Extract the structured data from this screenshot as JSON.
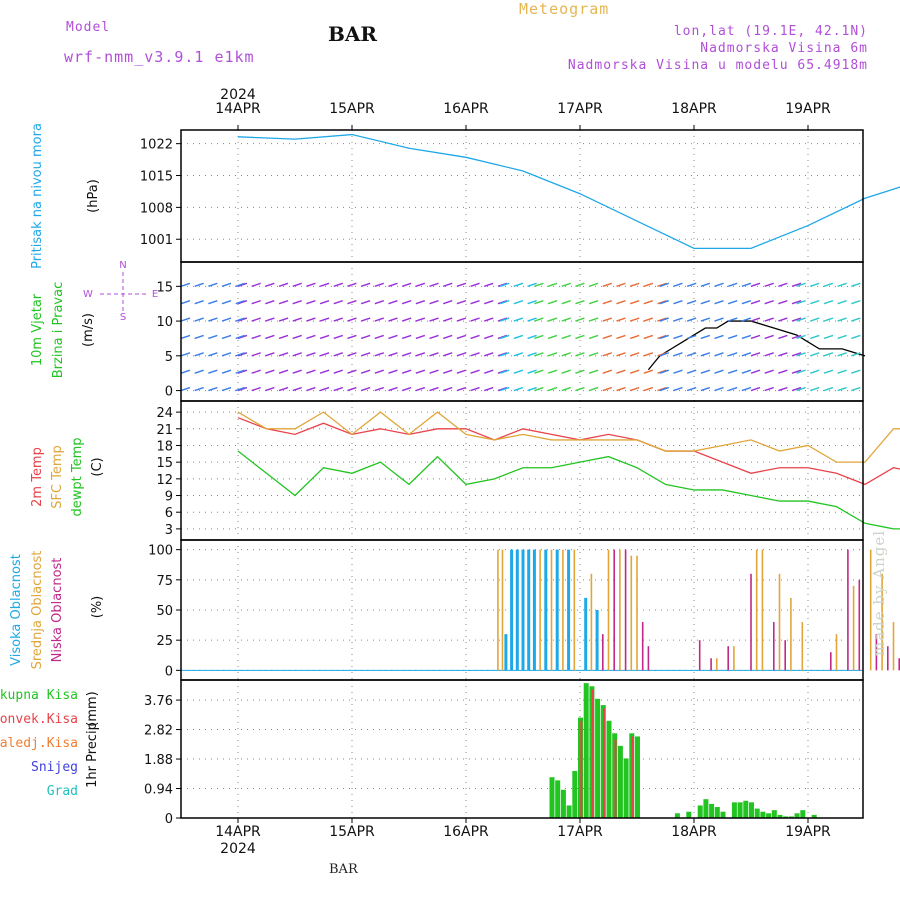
{
  "header": {
    "model_label": "Model",
    "model_name": "wrf-nmm_v3.9.1  e1km",
    "station": "BAR",
    "title": "Meteogram",
    "coords": "lon,lat (19.1E, 42.1N)",
    "elevation": "Nadmorska Visina 6m",
    "model_elevation": "Nadmorska Visina u modelu 65.4918m",
    "footer_station": "BAR",
    "credit": "made by Angel"
  },
  "colors": {
    "pressure": "#1ea8e8",
    "temp2m": "#e8434a",
    "sfc_temp": "#e0a63a",
    "dewpt": "#22c422",
    "cloud_high": "#1ea8e8",
    "cloud_mid": "#e0a63a",
    "cloud_low": "#c0288a",
    "precip_total": "#22c422",
    "precip_conv": "#e8434a",
    "precip_frozen": "#f07c30",
    "precip_snow": "#4040e0",
    "precip_grad": "#20c0c0",
    "wind_label": "#b14fd8"
  },
  "chart_data": [
    {
      "type": "line",
      "panel": "pressure",
      "x_dates": [
        "14APR",
        "15APR",
        "16APR",
        "17APR",
        "18APR",
        "19APR"
      ],
      "year": "2024",
      "ylabel": "Pritisak na nivou mora",
      "units": "(hPa)",
      "yticks": [
        1001,
        1008,
        1015,
        1022
      ],
      "ylim": [
        996,
        1025
      ],
      "series": [
        {
          "x": [
            0,
            0.5,
            1,
            1.5,
            2,
            2.5,
            3,
            3.5,
            4,
            4.5,
            5,
            5.5,
            6
          ],
          "values": [
            1023.5,
            1023,
            1024,
            1021,
            1019,
            1016,
            1011,
            1005,
            999,
            999,
            1004,
            1010,
            1014
          ]
        }
      ]
    },
    {
      "type": "line",
      "panel": "wind",
      "ylabel": [
        "10m Vjetar",
        "Brzina i Pravac"
      ],
      "units": "(m/s)",
      "direction_labels": {
        "n": "N",
        "s": "S",
        "w": "W",
        "e": "E"
      },
      "yticks": [
        0,
        5,
        10,
        15
      ],
      "ylim": [
        -1.5,
        18.5
      ],
      "series": [
        {
          "x": [
            3.6,
            3.65,
            3.7,
            3.8,
            3.9,
            4,
            4.1,
            4.2,
            4.3,
            4.5,
            4.7,
            4.9,
            5,
            5.1,
            5.3,
            5.5
          ],
          "values": [
            3,
            4,
            5,
            6,
            7,
            8,
            9,
            9,
            10,
            10,
            9,
            8,
            7,
            6,
            6,
            5
          ]
        }
      ]
    },
    {
      "type": "line",
      "panel": "temperature",
      "ylabel": [
        "2m Temp",
        "SFC Temp",
        "dewpt Temp"
      ],
      "units": "(C)",
      "yticks": [
        3,
        6,
        9,
        12,
        15,
        18,
        21,
        24
      ],
      "ylim": [
        1,
        26
      ],
      "x": [
        0,
        0.25,
        0.5,
        0.75,
        1,
        1.25,
        1.5,
        1.75,
        2,
        2.25,
        2.5,
        2.75,
        3,
        3.25,
        3.5,
        3.75,
        4,
        4.25,
        4.5,
        4.75,
        5,
        5.25,
        5.5,
        5.75,
        6
      ],
      "series": [
        {
          "name": "2m Temp",
          "values": [
            23,
            21,
            20,
            22,
            20,
            21,
            20,
            21,
            21,
            19,
            21,
            20,
            19,
            20,
            19,
            17,
            17,
            15,
            13,
            14,
            14,
            13,
            11,
            14,
            13
          ]
        },
        {
          "name": "SFC Temp",
          "values": [
            24,
            21,
            21,
            24,
            20,
            24,
            20,
            24,
            20,
            19,
            20,
            19,
            19,
            19,
            19,
            17,
            17,
            18,
            19,
            17,
            18,
            15,
            15,
            21,
            21
          ]
        },
        {
          "name": "dewpt Temp",
          "values": [
            17,
            13,
            9,
            14,
            13,
            15,
            11,
            16,
            11,
            12,
            14,
            14,
            15,
            16,
            14,
            11,
            10,
            10,
            9,
            8,
            8,
            7,
            4,
            3,
            3
          ]
        }
      ]
    },
    {
      "type": "bar",
      "panel": "clouds",
      "ylabel": [
        "Visoka Oblacnost",
        "Srednja Oblacnost",
        "Niska Oblacnost"
      ],
      "units": "(%)",
      "yticks": [
        0,
        25,
        50,
        75,
        100
      ],
      "ylim": [
        -8,
        108
      ],
      "series": [
        {
          "name": "Visoka Oblacnost",
          "x": [
            2.35,
            2.4,
            2.45,
            2.5,
            2.55,
            2.6,
            2.7,
            2.8,
            2.9,
            3.05,
            3.15
          ],
          "values": [
            30,
            100,
            100,
            100,
            100,
            100,
            100,
            100,
            100,
            60,
            50
          ]
        },
        {
          "name": "Srednja Oblacnost",
          "x": [
            2.28,
            2.32,
            2.65,
            2.75,
            2.85,
            2.95,
            3.1,
            3.25,
            3.35,
            3.45,
            3.5,
            4.2,
            4.35,
            4.55,
            4.6,
            4.75,
            4.85,
            4.95,
            5.25,
            5.4,
            5.55,
            5.65,
            5.75
          ],
          "values": [
            100,
            100,
            100,
            100,
            100,
            100,
            80,
            100,
            100,
            95,
            95,
            10,
            20,
            100,
            100,
            80,
            60,
            40,
            30,
            70,
            100,
            80,
            40
          ]
        },
        {
          "name": "Niska Oblacnost",
          "x": [
            3.2,
            3.3,
            3.4,
            3.55,
            3.6,
            4.05,
            4.15,
            4.3,
            4.5,
            4.7,
            4.8,
            5.2,
            5.35,
            5.45,
            5.6,
            5.7,
            5.8
          ],
          "values": [
            30,
            100,
            100,
            40,
            20,
            25,
            10,
            20,
            80,
            40,
            25,
            15,
            100,
            75,
            30,
            20,
            10
          ]
        }
      ]
    },
    {
      "type": "bar",
      "panel": "precipitation",
      "ylabel": "1hr Precip",
      "units": "(mm)",
      "legend": [
        "Ukupna Kisa",
        "Konvek.Kisa",
        "Zaledj.Kisa",
        "Snijeg",
        "Grad"
      ],
      "yticks": [
        0,
        0.94,
        1.88,
        2.82,
        3.76
      ],
      "ylim": [
        0,
        4.4
      ],
      "series": [
        {
          "name": "Ukupna Kisa",
          "x": [
            2.75,
            2.8,
            2.85,
            2.9,
            2.95,
            3,
            3.05,
            3.1,
            3.15,
            3.2,
            3.25,
            3.3,
            3.35,
            3.4,
            3.45,
            3.5,
            3.85,
            3.95,
            4.05,
            4.1,
            4.15,
            4.2,
            4.25,
            4.35,
            4.4,
            4.45,
            4.5,
            4.55,
            4.6,
            4.65,
            4.7,
            4.75,
            4.8,
            4.85,
            4.9,
            4.95,
            5.05
          ],
          "values": [
            1.3,
            1.2,
            0.9,
            0.4,
            1.5,
            3.2,
            4.3,
            4.2,
            3.8,
            3.6,
            3.1,
            2.7,
            2.3,
            1.9,
            2.7,
            2.6,
            0.15,
            0.2,
            0.4,
            0.6,
            0.45,
            0.35,
            0.2,
            0.5,
            0.5,
            0.55,
            0.5,
            0.3,
            0.2,
            0.15,
            0.25,
            0.1,
            0.05,
            0.05,
            0.15,
            0.25,
            0.1
          ]
        },
        {
          "name": "Konvek.Kisa",
          "x": [
            3.02,
            3.12,
            3.22,
            3.32,
            3.47
          ],
          "values": [
            3.1,
            4.1,
            3.5,
            2.5,
            2.6
          ]
        }
      ]
    }
  ]
}
